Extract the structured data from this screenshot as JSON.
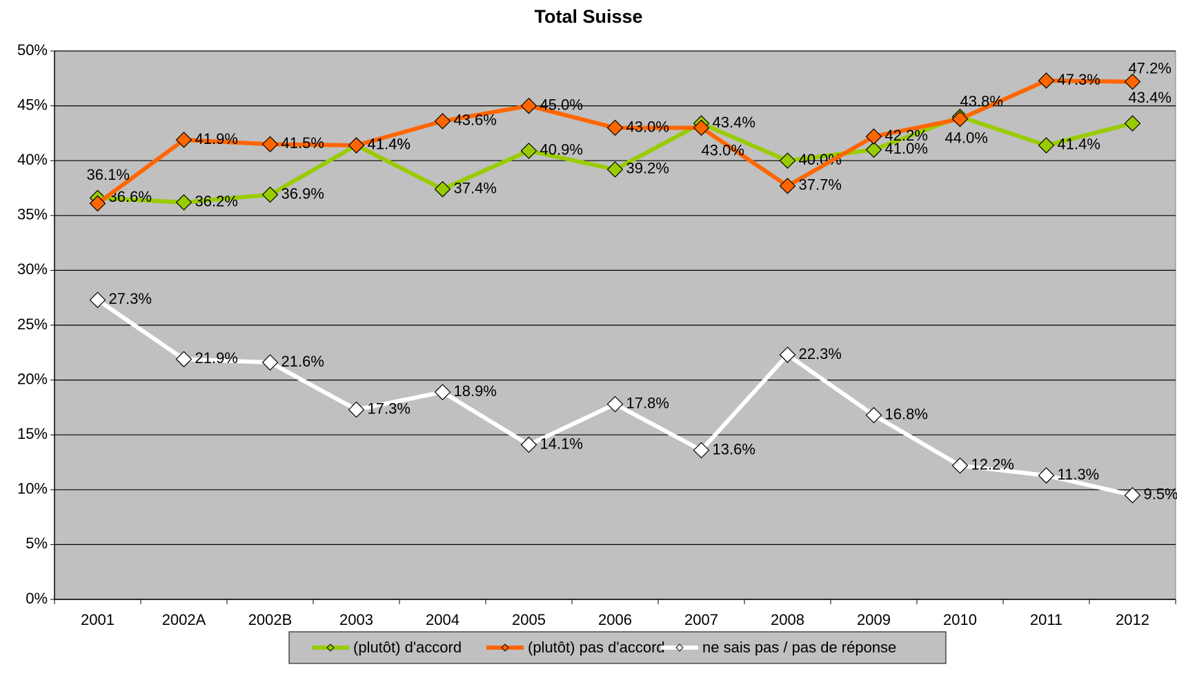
{
  "chart_data": {
    "type": "line",
    "title": "Total Suisse",
    "categories": [
      "2001",
      "2002A",
      "2002B",
      "2003",
      "2004",
      "2005",
      "2006",
      "2007",
      "2008",
      "2009",
      "2010",
      "2011",
      "2012"
    ],
    "ylim": [
      0,
      50
    ],
    "yticks": [
      {
        "value": 0,
        "label": "0%"
      },
      {
        "value": 5,
        "label": "5%"
      },
      {
        "value": 10,
        "label": "10%"
      },
      {
        "value": 15,
        "label": "15%"
      },
      {
        "value": 20,
        "label": "20%"
      },
      {
        "value": 25,
        "label": "25%"
      },
      {
        "value": 30,
        "label": "30%"
      },
      {
        "value": 35,
        "label": "35%"
      },
      {
        "value": 40,
        "label": "40%"
      },
      {
        "value": 45,
        "label": "45%"
      },
      {
        "value": 50,
        "label": "50%"
      }
    ],
    "grid": true,
    "series": [
      {
        "name": "(plutôt) d'accord",
        "color": "#99cc00",
        "values": [
          36.6,
          36.2,
          36.9,
          41.4,
          37.4,
          40.9,
          39.2,
          43.4,
          40.0,
          41.0,
          44.0,
          41.4,
          43.4
        ],
        "value_labels": [
          "36.6%",
          "36.2%",
          "36.9%",
          "41.4%",
          "37.4%",
          "40.9%",
          "39.2%",
          "43.4%",
          "40.0%",
          "41.0%",
          "44.0%",
          "41.4%",
          "43.4%"
        ]
      },
      {
        "name": "(plutôt) pas d'accord",
        "color": "#ff6600",
        "values": [
          36.1,
          41.9,
          41.5,
          41.4,
          43.6,
          45.0,
          43.0,
          43.0,
          37.7,
          42.2,
          43.8,
          47.3,
          47.2
        ],
        "value_labels": [
          "36.1%",
          "41.9%",
          "41.5%",
          "41.4%",
          "43.6%",
          "45.0%",
          "43.0%",
          "43.0%",
          "37.7%",
          "42.2%",
          "43.8%",
          "47.3%",
          "47.2%"
        ]
      },
      {
        "name": "ne sais pas / pas de réponse",
        "color": "#ffffff",
        "values": [
          27.3,
          21.9,
          21.6,
          17.3,
          18.9,
          14.1,
          17.8,
          13.6,
          22.3,
          16.8,
          12.2,
          11.3,
          9.5
        ],
        "value_labels": [
          "27.3%",
          "21.9%",
          "21.6%",
          "17.3%",
          "18.9%",
          "14.1%",
          "17.8%",
          "13.6%",
          "22.3%",
          "16.8%",
          "12.2%",
          "11.3%",
          "9.5%"
        ]
      }
    ]
  }
}
